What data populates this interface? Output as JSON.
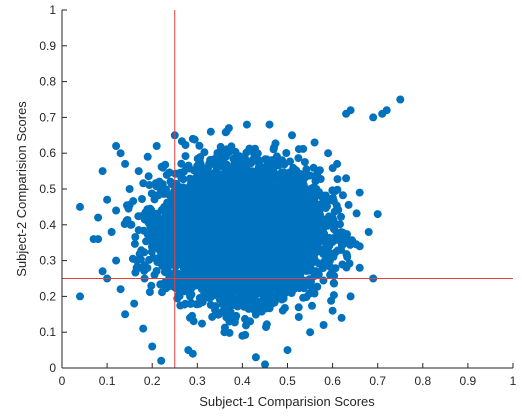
{
  "chart_data": {
    "type": "scatter",
    "title": "",
    "xlabel": "Subject-1 Comparision Scores",
    "ylabel": "Subject-2 Comparision Scores",
    "xlim": [
      0,
      1
    ],
    "ylim": [
      0,
      1
    ],
    "x_ticks": [
      "0",
      "0.1",
      "0.2",
      "0.3",
      "0.4",
      "0.5",
      "0.6",
      "0.7",
      "0.8",
      "0.9",
      "1"
    ],
    "y_ticks": [
      "0",
      "0.1",
      "0.2",
      "0.3",
      "0.4",
      "0.5",
      "0.6",
      "0.7",
      "0.8",
      "0.9",
      "1"
    ],
    "grid": false,
    "marker_color": "#0072BD",
    "threshold_color": "#E0403F",
    "thresholds": {
      "x": 0.25,
      "y": 0.25
    },
    "points": [
      [
        0.75,
        0.75
      ],
      [
        0.72,
        0.72
      ],
      [
        0.71,
        0.71
      ],
      [
        0.69,
        0.7
      ],
      [
        0.64,
        0.72
      ],
      [
        0.63,
        0.71
      ],
      [
        0.04,
        0.45
      ],
      [
        0.04,
        0.2
      ],
      [
        0.07,
        0.36
      ],
      [
        0.08,
        0.36
      ],
      [
        0.09,
        0.27
      ],
      [
        0.1,
        0.25
      ],
      [
        0.08,
        0.42
      ],
      [
        0.1,
        0.47
      ],
      [
        0.09,
        0.55
      ],
      [
        0.12,
        0.62
      ],
      [
        0.13,
        0.6
      ],
      [
        0.14,
        0.57
      ],
      [
        0.11,
        0.38
      ],
      [
        0.12,
        0.3
      ],
      [
        0.13,
        0.22
      ],
      [
        0.14,
        0.15
      ],
      [
        0.16,
        0.18
      ],
      [
        0.18,
        0.11
      ],
      [
        0.2,
        0.06
      ],
      [
        0.22,
        0.02
      ],
      [
        0.28,
        0.05
      ],
      [
        0.29,
        0.04
      ],
      [
        0.43,
        0.03
      ],
      [
        0.45,
        0.01
      ],
      [
        0.5,
        0.05
      ],
      [
        0.36,
        0.1
      ],
      [
        0.4,
        0.09
      ],
      [
        0.55,
        0.1
      ],
      [
        0.58,
        0.12
      ],
      [
        0.6,
        0.16
      ],
      [
        0.62,
        0.14
      ],
      [
        0.64,
        0.2
      ],
      [
        0.66,
        0.28
      ],
      [
        0.69,
        0.25
      ],
      [
        0.66,
        0.34
      ],
      [
        0.68,
        0.38
      ],
      [
        0.7,
        0.43
      ],
      [
        0.66,
        0.49
      ],
      [
        0.63,
        0.53
      ],
      [
        0.61,
        0.57
      ],
      [
        0.59,
        0.6
      ],
      [
        0.56,
        0.63
      ],
      [
        0.51,
        0.65
      ],
      [
        0.46,
        0.68
      ],
      [
        0.41,
        0.68
      ],
      [
        0.37,
        0.67
      ],
      [
        0.33,
        0.66
      ],
      [
        0.29,
        0.64
      ],
      [
        0.25,
        0.65
      ],
      [
        0.21,
        0.62
      ],
      [
        0.19,
        0.59
      ],
      [
        0.17,
        0.55
      ],
      [
        0.15,
        0.5
      ],
      [
        0.12,
        0.44
      ]
    ],
    "cluster": {
      "center": [
        0.4,
        0.38
      ],
      "spread": [
        0.085,
        0.085
      ],
      "count": 6000
    }
  }
}
